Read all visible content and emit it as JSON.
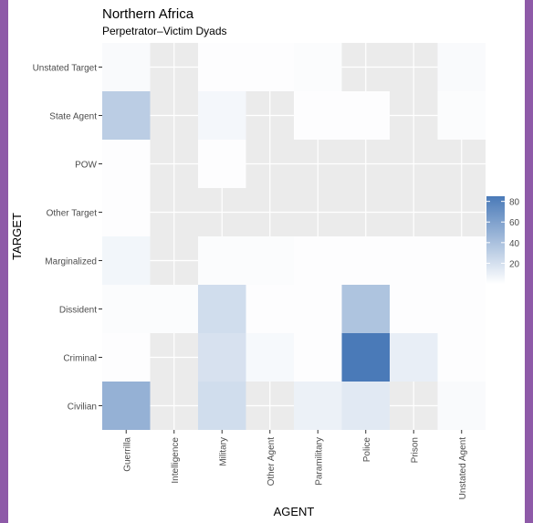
{
  "colors": {
    "frame": "#8e5aa8",
    "panel": "#ebebeb",
    "grid": "#ffffff",
    "low": "#ffffff",
    "high": "#4a7ab8",
    "text": "#000000",
    "tick_text": "#4d4d4d"
  },
  "chart_data": {
    "type": "heatmap",
    "title": "Northern Africa",
    "subtitle": "Perpetrator–Victim Dyads",
    "xlabel": "AGENT",
    "ylabel": "TARGET",
    "x_categories": [
      "Guerrilla",
      "Intelligence",
      "Military",
      "Other Agent",
      "Paramilitary",
      "Police",
      "Prison",
      "Unstated Agent"
    ],
    "y_categories": [
      "Civilian",
      "Criminal",
      "Dissident",
      "Marginalized",
      "Other Target",
      "POW",
      "State Agent",
      "Unstated Target"
    ],
    "value_range": [
      0,
      85
    ],
    "legend": {
      "breaks": [
        80,
        60,
        40,
        20
      ],
      "break_labels": [
        "80",
        "60",
        "40",
        "20"
      ],
      "position": "right"
    },
    "cells": [
      {
        "x": "Guerrilla",
        "y": "Civilian",
        "value": 50
      },
      {
        "x": "Military",
        "y": "Civilian",
        "value": 22
      },
      {
        "x": "Paramilitary",
        "y": "Civilian",
        "value": 9
      },
      {
        "x": "Police",
        "y": "Civilian",
        "value": 14
      },
      {
        "x": "Unstated Agent",
        "y": "Civilian",
        "value": 3
      },
      {
        "x": "Guerrilla",
        "y": "Criminal",
        "value": 1
      },
      {
        "x": "Military",
        "y": "Criminal",
        "value": 19
      },
      {
        "x": "Other Agent",
        "y": "Criminal",
        "value": 4
      },
      {
        "x": "Paramilitary",
        "y": "Criminal",
        "value": 1
      },
      {
        "x": "Police",
        "y": "Criminal",
        "value": 85
      },
      {
        "x": "Prison",
        "y": "Criminal",
        "value": 11
      },
      {
        "x": "Unstated Agent",
        "y": "Criminal",
        "value": 1
      },
      {
        "x": "Guerrilla",
        "y": "Dissident",
        "value": 2
      },
      {
        "x": "Intelligence",
        "y": "Dissident",
        "value": 2
      },
      {
        "x": "Military",
        "y": "Dissident",
        "value": 22
      },
      {
        "x": "Other Agent",
        "y": "Dissident",
        "value": 1
      },
      {
        "x": "Paramilitary",
        "y": "Dissident",
        "value": 1
      },
      {
        "x": "Police",
        "y": "Dissident",
        "value": 38
      },
      {
        "x": "Prison",
        "y": "Dissident",
        "value": 1
      },
      {
        "x": "Unstated Agent",
        "y": "Dissident",
        "value": 1
      },
      {
        "x": "Guerrilla",
        "y": "Marginalized",
        "value": 6
      },
      {
        "x": "Military",
        "y": "Marginalized",
        "value": 2
      },
      {
        "x": "Other Agent",
        "y": "Marginalized",
        "value": 2
      },
      {
        "x": "Paramilitary",
        "y": "Marginalized",
        "value": 1
      },
      {
        "x": "Police",
        "y": "Marginalized",
        "value": 1
      },
      {
        "x": "Prison",
        "y": "Marginalized",
        "value": 1
      },
      {
        "x": "Unstated Agent",
        "y": "Marginalized",
        "value": 1
      },
      {
        "x": "Guerrilla",
        "y": "Other Target",
        "value": 1
      },
      {
        "x": "Guerrilla",
        "y": "POW",
        "value": 1
      },
      {
        "x": "Military",
        "y": "POW",
        "value": 1
      },
      {
        "x": "Guerrilla",
        "y": "State Agent",
        "value": 32
      },
      {
        "x": "Military",
        "y": "State Agent",
        "value": 5
      },
      {
        "x": "Paramilitary",
        "y": "State Agent",
        "value": 1
      },
      {
        "x": "Police",
        "y": "State Agent",
        "value": 1
      },
      {
        "x": "Unstated Agent",
        "y": "State Agent",
        "value": 2
      },
      {
        "x": "Guerrilla",
        "y": "Unstated Target",
        "value": 3
      },
      {
        "x": "Military",
        "y": "Unstated Target",
        "value": 1
      },
      {
        "x": "Other Agent",
        "y": "Unstated Target",
        "value": 1
      },
      {
        "x": "Paramilitary",
        "y": "Unstated Target",
        "value": 2
      },
      {
        "x": "Unstated Agent",
        "y": "Unstated Target",
        "value": 3
      }
    ]
  }
}
